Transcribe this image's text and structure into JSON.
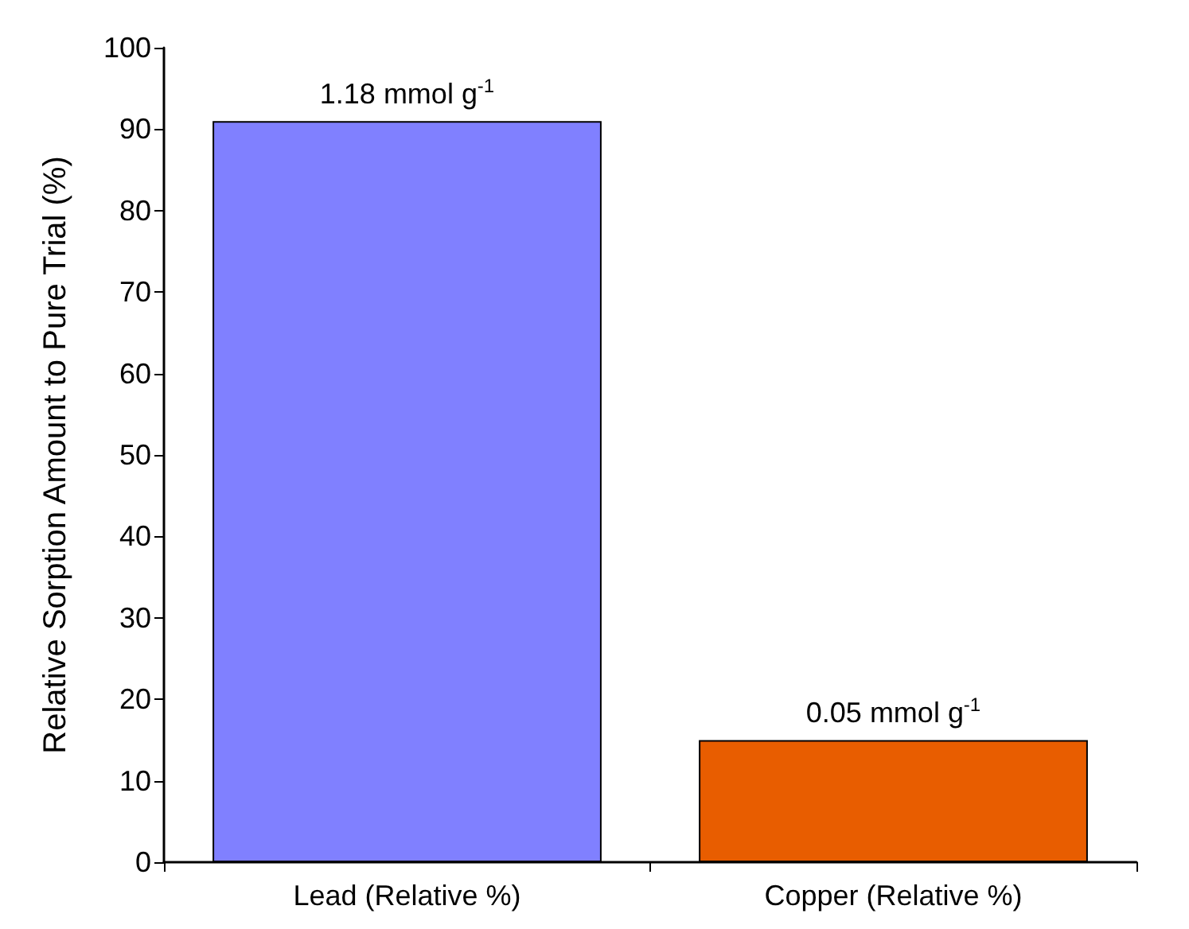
{
  "chart_data": {
    "type": "bar",
    "ylabel": "Relative Sorption Amount to Pure Trial (%)",
    "categories": [
      "Lead (Relative %)",
      "Copper (Relative %)"
    ],
    "values": [
      91,
      15
    ],
    "colors": [
      "#8080ff",
      "#e85d00"
    ],
    "annotations": [
      {
        "text": "1.18 mmol g$^{-1}$",
        "x": "Lead (Relative %)",
        "y": 91
      },
      {
        "text": "0.05 mmol g$^{-1}$",
        "x": "Copper (Relative %)",
        "y": 15
      }
    ],
    "ylim": [
      0,
      100
    ],
    "yticks": [
      0,
      10,
      20,
      30,
      40,
      50,
      60,
      70,
      80,
      90,
      100
    ],
    "grid": false
  }
}
